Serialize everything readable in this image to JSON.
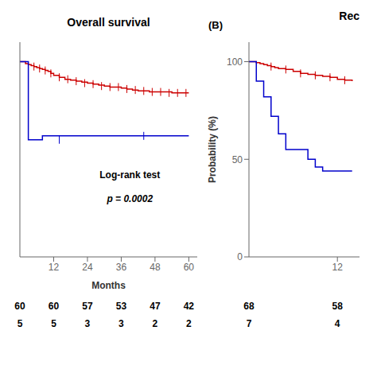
{
  "chart_data": [
    {
      "type": "step",
      "title": "Overall survival",
      "xlabel": "Months",
      "xlim": [
        0,
        63
      ],
      "ylim": [
        0,
        110
      ],
      "xticks": [
        12,
        24,
        36,
        48,
        60
      ],
      "tick_labels": "x",
      "grid": false,
      "annotations": [
        "Log-rank test",
        "p = 0.0002"
      ],
      "series": [
        {
          "color": "#cc0000",
          "x": [
            0,
            2,
            3,
            4,
            5,
            6,
            7,
            8,
            9,
            10,
            11,
            12,
            14,
            16,
            18,
            20,
            22,
            24,
            26,
            28,
            30,
            32,
            34,
            36,
            38,
            40,
            42,
            44,
            46,
            48,
            50,
            52,
            54,
            56,
            58,
            60
          ],
          "values": [
            100,
            99,
            98.5,
            98,
            97.5,
            97,
            96.5,
            96,
            95.5,
            95,
            94,
            93,
            92,
            91,
            90.5,
            90,
            89.5,
            89,
            88.5,
            88,
            87.5,
            87,
            87,
            86.5,
            86,
            85.5,
            85,
            85,
            84.5,
            84.5,
            84.5,
            84.5,
            84,
            84,
            84,
            84
          ]
        },
        {
          "color": "#0000cc",
          "x": [
            0,
            3,
            3,
            8,
            8,
            60
          ],
          "values": [
            100,
            100,
            60,
            60,
            62,
            62
          ]
        },
        {
          "type": "scatter",
          "marker": "|",
          "color": "#cc0000",
          "x": [
            5,
            7,
            9,
            11,
            14,
            17,
            20,
            23,
            26,
            29,
            32,
            35,
            38,
            41,
            44,
            47,
            50,
            53,
            56,
            59
          ],
          "values": [
            97.5,
            96.5,
            95.5,
            94,
            92,
            91,
            90,
            89,
            88.5,
            87.5,
            87,
            87,
            86,
            85.5,
            85,
            84.5,
            84.5,
            84,
            84,
            84
          ]
        },
        {
          "type": "scatter",
          "marker": "|",
          "color": "#0000cc",
          "x": [
            14,
            44
          ],
          "values": [
            60,
            62
          ]
        }
      ],
      "at_risk": {
        "x": [
          0,
          12,
          24,
          36,
          48,
          60
        ],
        "rows": [
          [
            60,
            60,
            57,
            53,
            47,
            42
          ],
          [
            5,
            5,
            3,
            3,
            2,
            2
          ]
        ]
      }
    },
    {
      "type": "step",
      "label": "(B)",
      "title": "Rec",
      "ylabel": "Probability (%)",
      "xlim": [
        0,
        15
      ],
      "ylim": [
        0,
        110
      ],
      "xticks": [
        12
      ],
      "yticks": [
        0,
        50,
        100
      ],
      "grid": false,
      "series": [
        {
          "color": "#cc0000",
          "x": [
            0,
            0.5,
            1,
            1.5,
            2,
            2.5,
            3,
            3.5,
            4,
            5,
            6,
            7,
            8,
            9,
            10,
            11,
            12,
            13,
            14
          ],
          "values": [
            100,
            100,
            99.5,
            99,
            98.5,
            98,
            97.5,
            97,
            96.5,
            96,
            95,
            94,
            93.5,
            93,
            92.5,
            92,
            91,
            90.5,
            90
          ]
        },
        {
          "color": "#0000cc",
          "x": [
            0,
            1,
            2,
            3,
            4,
            5,
            6,
            8,
            9,
            10,
            14
          ],
          "values": [
            100,
            90,
            82,
            72,
            63,
            55,
            55,
            50,
            46,
            44,
            44
          ]
        },
        {
          "type": "scatter",
          "marker": "|",
          "color": "#cc0000",
          "x": [
            3,
            5,
            7,
            9,
            11,
            13
          ],
          "values": [
            97.5,
            96,
            94,
            93,
            92,
            90.5
          ]
        }
      ],
      "at_risk": {
        "x": [
          0,
          12
        ],
        "rows": [
          [
            68,
            58
          ],
          [
            7,
            4
          ]
        ]
      }
    }
  ]
}
